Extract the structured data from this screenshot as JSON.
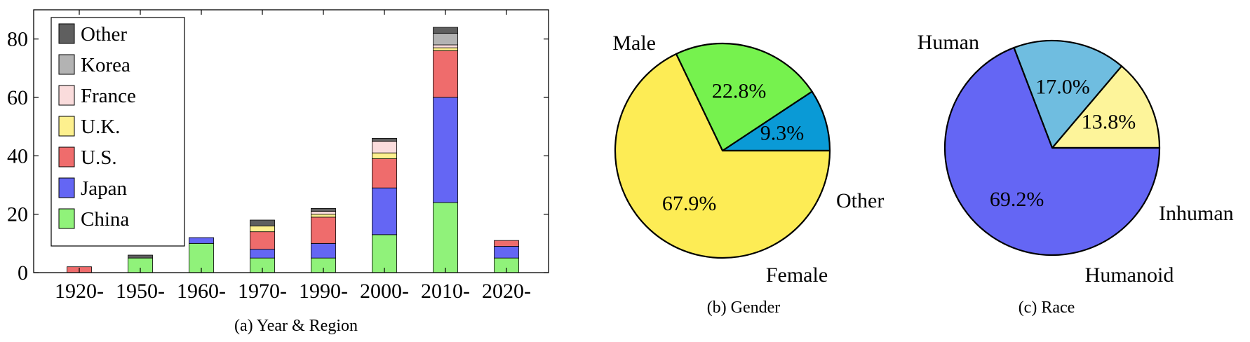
{
  "chart_data": [
    {
      "type": "bar",
      "stacked": true,
      "caption": "(a) Year & Region",
      "categories": [
        "1920-",
        "1950-",
        "1960-",
        "1970-",
        "1990-",
        "2000-",
        "2010-",
        "2020-"
      ],
      "ylim": [
        0,
        90
      ],
      "yticks": [
        0,
        20,
        40,
        60,
        80
      ],
      "grid": false,
      "legend_position": "top-left",
      "series": [
        {
          "name": "China",
          "color": "#90f27a",
          "values": [
            0,
            5,
            10,
            5,
            5,
            13,
            24,
            5
          ]
        },
        {
          "name": "Japan",
          "color": "#6466f4",
          "values": [
            0,
            0,
            2,
            3,
            5,
            16,
            36,
            4
          ]
        },
        {
          "name": "U.S.",
          "color": "#ef6c6c",
          "values": [
            2,
            0,
            0,
            6,
            9,
            10,
            16,
            2
          ]
        },
        {
          "name": "U.K.",
          "color": "#fdf08e",
          "values": [
            0,
            0,
            0,
            2,
            1,
            2,
            1,
            0
          ]
        },
        {
          "name": "France",
          "color": "#fadcdc",
          "values": [
            0,
            0,
            0,
            0,
            1,
            4,
            1,
            0
          ]
        },
        {
          "name": "Korea",
          "color": "#b3b3b3",
          "values": [
            0,
            0,
            0,
            0,
            0,
            0,
            4,
            0
          ]
        },
        {
          "name": "Other",
          "color": "#5f5f5f",
          "values": [
            0,
            1,
            0,
            2,
            1,
            1,
            2,
            0
          ]
        }
      ]
    },
    {
      "type": "pie",
      "caption": "(b) Gender",
      "slices": [
        {
          "name": "Other",
          "value": 9.3,
          "label": "9.3%",
          "color": "#0a9ad6"
        },
        {
          "name": "Female",
          "value": 22.8,
          "label": "22.8%",
          "color": "#76f24e"
        },
        {
          "name": "Male",
          "value": 67.9,
          "label": "67.9%",
          "color": "#fdec55"
        }
      ]
    },
    {
      "type": "pie",
      "caption": "(c) Race",
      "slices": [
        {
          "name": "Inhuman",
          "value": 13.8,
          "label": "13.8%",
          "color": "#fdf49a"
        },
        {
          "name": "Humanoid",
          "value": 17.0,
          "label": "17.0%",
          "color": "#6fbde0"
        },
        {
          "name": "Human",
          "value": 69.2,
          "label": "69.2%",
          "color": "#6466f4"
        }
      ]
    }
  ]
}
